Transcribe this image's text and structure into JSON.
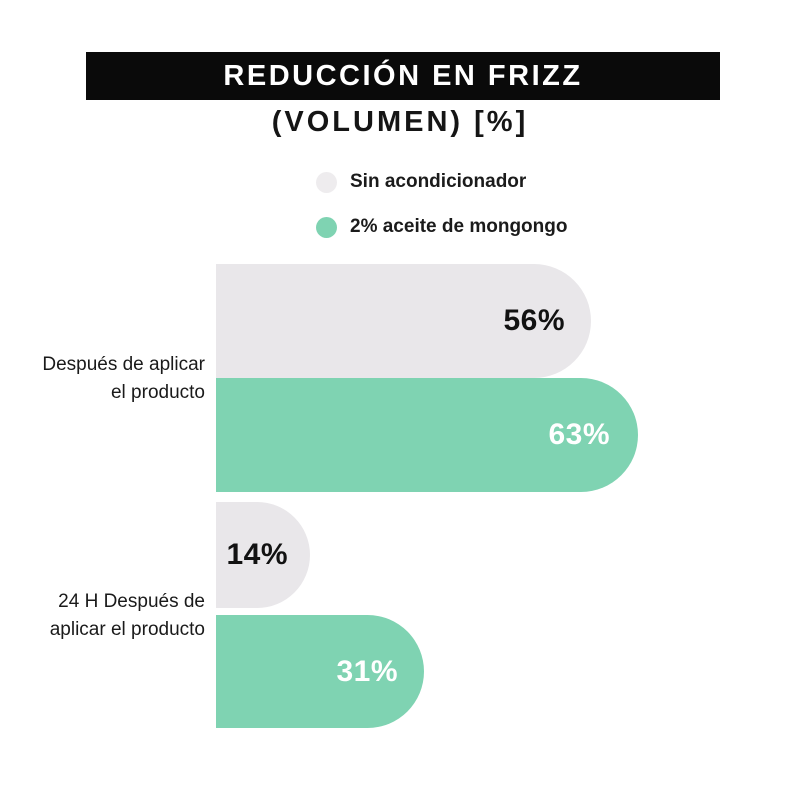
{
  "header": {
    "title": "REDUCCIÓN EN FRIZZ",
    "subtitle": "(VOLUMEN) [%]"
  },
  "legend": {
    "position": "top-center",
    "items": [
      {
        "label": "Sin acondicionador",
        "swatch": "circle",
        "color": "#eeecee"
      },
      {
        "label": "2% aceite de mongongo",
        "swatch": "circle",
        "color": "#7fd3b2"
      }
    ]
  },
  "chart_data": {
    "type": "bar",
    "orientation": "horizontal",
    "title": "REDUCCIÓN EN FRIZZ (VOLUMEN) [%]",
    "xlabel": "",
    "ylabel": "",
    "xlim": [
      0,
      87
    ],
    "grid": false,
    "legend_position": "top-center",
    "categories": [
      [
        "Después de aplicar",
        "el producto"
      ],
      [
        "24 H Después de",
        "aplicar el producto"
      ]
    ],
    "series": [
      {
        "name": "Sin acondicionador",
        "color": "#e9e7ea",
        "label_color": "#121212",
        "values": [
          56,
          14
        ],
        "data_labels": [
          "56%",
          "14%"
        ]
      },
      {
        "name": "2% aceite de mongongo",
        "color": "#7fd3b2",
        "label_color": "#ffffff",
        "values": [
          63,
          31
        ],
        "data_labels": [
          "63%",
          "31%"
        ]
      }
    ]
  },
  "colors": {
    "background": "#ffffff",
    "title_bar": "#0a0a0a",
    "title_text": "#ffffff",
    "subtitle_text": "#151515",
    "bar_gray": "#e9e7ea",
    "bar_green": "#7fd3b2",
    "category_text": "#1a1a1a"
  }
}
